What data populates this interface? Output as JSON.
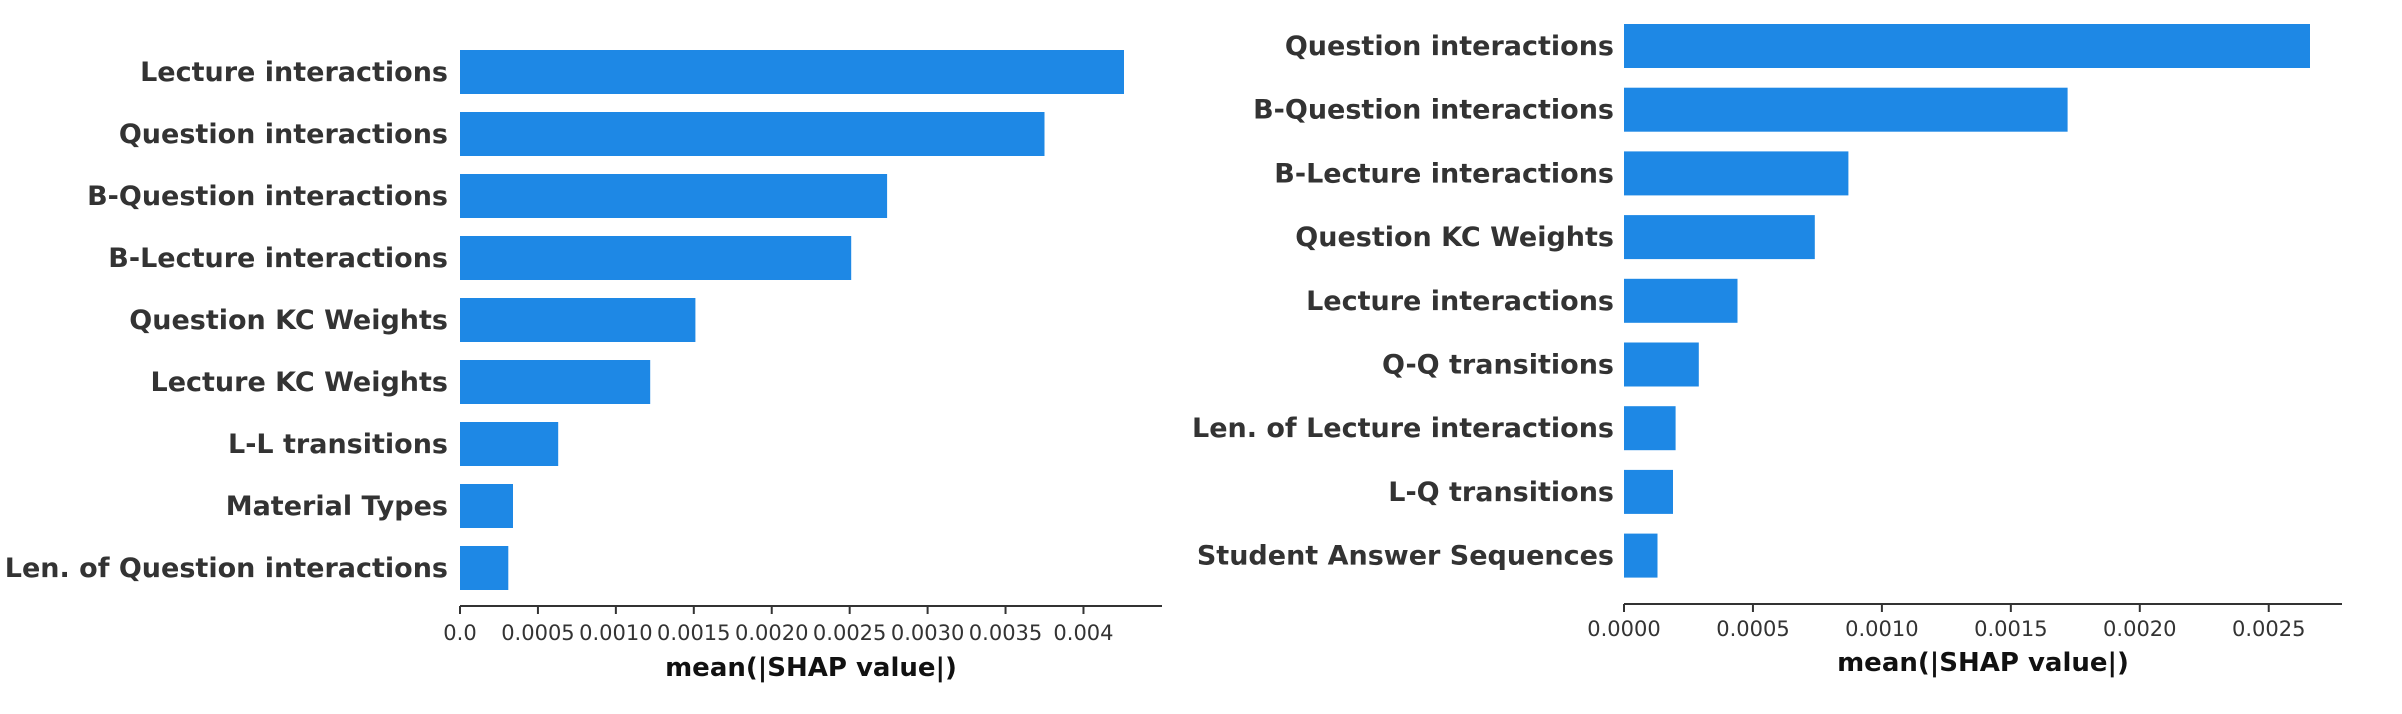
{
  "colors": {
    "bar": "#1e88e5",
    "axis": "#333333",
    "text": "#333333"
  },
  "chart_data": [
    {
      "type": "bar",
      "orientation": "horizontal",
      "categories": [
        "Lecture interactions",
        "Question interactions",
        "B-Question interactions",
        "B-Lecture interactions",
        "Question KC Weights",
        "Lecture KC Weights",
        "L-L transitions",
        "Material Types",
        "Len. of Question interactions"
      ],
      "values": [
        0.00426,
        0.00375,
        0.00274,
        0.00251,
        0.00151,
        0.00122,
        0.00063,
        0.00034,
        0.00031
      ],
      "xlim": [
        0,
        0.0045
      ],
      "xticks": [
        "0.0",
        "0.0005",
        "0.0010",
        "0.0015",
        "0.0020",
        "0.0025",
        "0.0030",
        "0.0035",
        "0.004"
      ],
      "xlabel": "mean(|SHAP value|)",
      "grid": false
    },
    {
      "type": "bar",
      "orientation": "horizontal",
      "categories": [
        "Question interactions",
        "B-Question interactions",
        "B-Lecture interactions",
        "Question KC Weights",
        "Lecture interactions",
        "Q-Q transitions",
        "Len. of Lecture interactions",
        "L-Q transitions",
        "Student Answer Sequences"
      ],
      "values": [
        0.00266,
        0.00172,
        0.00087,
        0.00074,
        0.00044,
        0.00029,
        0.0002,
        0.00019,
        0.00013
      ],
      "xlim": [
        0,
        0.0028
      ],
      "xticks": [
        "0.0000",
        "0.0005",
        "0.0010",
        "0.0015",
        "0.0020",
        "0.0025"
      ],
      "xlabel": "mean(|SHAP value|)",
      "grid": false
    }
  ]
}
